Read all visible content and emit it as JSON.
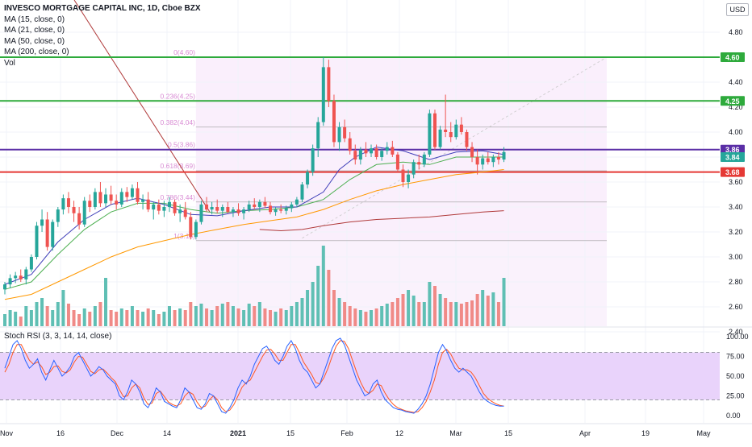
{
  "header": {
    "title": "INVESCO MORTGAGE CAPITAL INC, 1D, Cboe BZX",
    "currency": "USD",
    "indicators": [
      "MA (15, close, 0)",
      "MA (21, close, 0)",
      "MA (50, close, 0)",
      "MA (200, close, 0)",
      "Vol"
    ]
  },
  "colors": {
    "up": "#26a69a",
    "down": "#ef5350",
    "ma15": "#3f3fb8",
    "ma21": "#4caf50",
    "ma50": "#ff9800",
    "ma200": "#b03a3a",
    "purple_line": "#5a2ea6",
    "green_line": "#2eaa3c",
    "red_line": "#e53935",
    "fib": "#d98cd4",
    "stoch_k": "#2962ff",
    "stoch_d": "#ff5722",
    "stoch_band": "#e9d3fb"
  },
  "price_axis": {
    "ticks": [
      "4.80",
      "4.60",
      "4.40",
      "4.20",
      "4.00",
      "3.80",
      "3.60",
      "3.40",
      "3.20",
      "3.00",
      "2.80",
      "2.60",
      "2.40"
    ]
  },
  "price_tags": [
    {
      "label": "4.60",
      "color": "#2eaa3c"
    },
    {
      "label": "4.25",
      "color": "#2eaa3c"
    },
    {
      "label": "3.86",
      "color": "#5a2ea6"
    },
    {
      "label": "3.84",
      "color": "#26a69a"
    },
    {
      "label": "3.68",
      "color": "#e53935"
    }
  ],
  "fib_labels": [
    "0(4.60)",
    "0.236(4.25)",
    "0.382(4.04)",
    "0.5(3.86)",
    "0.618(3.69)",
    "0.786(3.44)",
    "1(3.13)"
  ],
  "stoch": {
    "label": "Stoch RSI (3, 3, 14, 14, close)",
    "ticks": [
      "100.00",
      "75.00",
      "50.00",
      "25.00",
      "0.00"
    ],
    "k": [
      60,
      75,
      90,
      95,
      85,
      70,
      60,
      65,
      72,
      55,
      45,
      58,
      70,
      60,
      50,
      55,
      62,
      75,
      80,
      70,
      60,
      50,
      55,
      62,
      58,
      50,
      45,
      40,
      25,
      20,
      30,
      45,
      40,
      30,
      15,
      10,
      20,
      35,
      30,
      18,
      15,
      12,
      10,
      20,
      35,
      30,
      20,
      10,
      8,
      15,
      28,
      25,
      15,
      5,
      3,
      10,
      20,
      35,
      45,
      40,
      50,
      65,
      75,
      85,
      88,
      80,
      70,
      65,
      75,
      88,
      95,
      85,
      70,
      60,
      55,
      45,
      35,
      40,
      55,
      70,
      85,
      95,
      98,
      90,
      75,
      60,
      45,
      35,
      25,
      28,
      40,
      45,
      30,
      20,
      15,
      10,
      8,
      7,
      5,
      4,
      3,
      8,
      15,
      25,
      40,
      60,
      80,
      90,
      82,
      70,
      60,
      55,
      60,
      55,
      50,
      40,
      30,
      22,
      18,
      15,
      13,
      12,
      12
    ],
    "d": [
      55,
      65,
      80,
      90,
      90,
      80,
      70,
      65,
      68,
      62,
      52,
      55,
      62,
      63,
      56,
      54,
      58,
      68,
      75,
      74,
      65,
      56,
      53,
      58,
      59,
      54,
      48,
      43,
      33,
      24,
      25,
      35,
      40,
      35,
      22,
      14,
      16,
      28,
      31,
      24,
      17,
      14,
      12,
      15,
      25,
      30,
      27,
      17,
      10,
      12,
      20,
      25,
      20,
      10,
      5,
      7,
      14,
      25,
      36,
      42,
      45,
      55,
      65,
      75,
      83,
      84,
      78,
      70,
      70,
      80,
      90,
      90,
      80,
      68,
      60,
      52,
      42,
      40,
      48,
      60,
      75,
      88,
      95,
      94,
      85,
      70,
      55,
      42,
      32,
      28,
      32,
      40,
      38,
      28,
      20,
      14,
      10,
      8,
      6,
      5,
      4,
      5,
      10,
      18,
      30,
      45,
      65,
      80,
      84,
      78,
      68,
      60,
      58,
      58,
      55,
      48,
      38,
      28,
      22,
      18,
      15,
      13,
      12
    ]
  },
  "time_axis": {
    "ticks": [
      "Nov",
      "16",
      "Dec",
      "14",
      "2021",
      "15",
      "Feb",
      "12",
      "Mar",
      "15",
      "Apr",
      "19",
      "May"
    ]
  },
  "chart_data": {
    "type": "candlestick",
    "title": "INVESCO MORTGAGE CAPITAL INC, 1D, Cboe BZX",
    "ylabel": "USD",
    "ylim": [
      2.38,
      4.95
    ],
    "date_range": [
      "2020-11-02",
      "2021-03-15"
    ],
    "candles_ohlc": [
      [
        2.74,
        2.8,
        2.7,
        2.78
      ],
      [
        2.78,
        2.86,
        2.75,
        2.83
      ],
      [
        2.83,
        2.88,
        2.79,
        2.85
      ],
      [
        2.85,
        2.9,
        2.8,
        2.82
      ],
      [
        2.82,
        2.92,
        2.78,
        2.9
      ],
      [
        2.9,
        3.02,
        2.88,
        3.0
      ],
      [
        3.0,
        3.28,
        2.98,
        3.25
      ],
      [
        3.25,
        3.38,
        3.2,
        3.3
      ],
      [
        3.3,
        3.36,
        3.05,
        3.08
      ],
      [
        3.08,
        3.3,
        3.05,
        3.28
      ],
      [
        3.28,
        3.4,
        3.24,
        3.38
      ],
      [
        3.38,
        3.5,
        3.34,
        3.47
      ],
      [
        3.47,
        3.52,
        3.35,
        3.4
      ],
      [
        3.4,
        3.45,
        3.28,
        3.35
      ],
      [
        3.35,
        3.4,
        3.22,
        3.26
      ],
      [
        3.26,
        3.48,
        3.24,
        3.45
      ],
      [
        3.45,
        3.5,
        3.36,
        3.4
      ],
      [
        3.4,
        3.55,
        3.38,
        3.52
      ],
      [
        3.52,
        3.6,
        3.4,
        3.43
      ],
      [
        3.43,
        3.55,
        3.4,
        3.5
      ],
      [
        3.5,
        3.57,
        3.42,
        3.45
      ],
      [
        3.45,
        3.5,
        3.38,
        3.42
      ],
      [
        3.42,
        3.55,
        3.4,
        3.52
      ],
      [
        3.52,
        3.56,
        3.44,
        3.48
      ],
      [
        3.48,
        3.58,
        3.46,
        3.55
      ],
      [
        3.55,
        3.6,
        3.42,
        3.44
      ],
      [
        3.44,
        3.5,
        3.38,
        3.46
      ],
      [
        3.46,
        3.52,
        3.36,
        3.38
      ],
      [
        3.38,
        3.44,
        3.3,
        3.42
      ],
      [
        3.42,
        3.46,
        3.34,
        3.37
      ],
      [
        3.37,
        3.45,
        3.32,
        3.4
      ],
      [
        3.4,
        3.48,
        3.36,
        3.44
      ],
      [
        3.44,
        3.46,
        3.33,
        3.35
      ],
      [
        3.35,
        3.42,
        3.28,
        3.38
      ],
      [
        3.38,
        3.44,
        3.3,
        3.32
      ],
      [
        3.32,
        3.36,
        3.14,
        3.16
      ],
      [
        3.16,
        3.3,
        3.14,
        3.28
      ],
      [
        3.28,
        3.45,
        3.26,
        3.42
      ],
      [
        3.42,
        3.48,
        3.36,
        3.38
      ],
      [
        3.38,
        3.44,
        3.34,
        3.4
      ],
      [
        3.4,
        3.46,
        3.35,
        3.37
      ],
      [
        3.37,
        3.42,
        3.32,
        3.4
      ],
      [
        3.4,
        3.44,
        3.35,
        3.36
      ],
      [
        3.36,
        3.4,
        3.32,
        3.38
      ],
      [
        3.38,
        3.43,
        3.33,
        3.35
      ],
      [
        3.35,
        3.4,
        3.3,
        3.38
      ],
      [
        3.38,
        3.45,
        3.36,
        3.42
      ],
      [
        3.42,
        3.47,
        3.38,
        3.4
      ],
      [
        3.4,
        3.46,
        3.36,
        3.44
      ],
      [
        3.44,
        3.48,
        3.39,
        3.41
      ],
      [
        3.41,
        3.44,
        3.34,
        3.36
      ],
      [
        3.36,
        3.4,
        3.33,
        3.38
      ],
      [
        3.38,
        3.42,
        3.35,
        3.37
      ],
      [
        3.37,
        3.41,
        3.34,
        3.39
      ],
      [
        3.39,
        3.44,
        3.36,
        3.42
      ],
      [
        3.42,
        3.48,
        3.4,
        3.46
      ],
      [
        3.46,
        3.6,
        3.44,
        3.58
      ],
      [
        3.58,
        3.7,
        3.55,
        3.68
      ],
      [
        3.68,
        3.9,
        3.65,
        3.87
      ],
      [
        3.87,
        4.12,
        3.8,
        4.08
      ],
      [
        4.08,
        4.6,
        4.05,
        4.52
      ],
      [
        4.52,
        4.58,
        4.2,
        4.25
      ],
      [
        4.25,
        4.3,
        3.88,
        3.92
      ],
      [
        3.92,
        4.08,
        3.85,
        4.04
      ],
      [
        4.04,
        4.1,
        3.92,
        3.95
      ],
      [
        3.95,
        4.0,
        3.82,
        3.85
      ],
      [
        3.85,
        3.9,
        3.74,
        3.78
      ],
      [
        3.78,
        3.88,
        3.74,
        3.86
      ],
      [
        3.86,
        3.92,
        3.8,
        3.83
      ],
      [
        3.83,
        3.9,
        3.8,
        3.87
      ],
      [
        3.87,
        3.9,
        3.78,
        3.8
      ],
      [
        3.8,
        3.87,
        3.77,
        3.85
      ],
      [
        3.85,
        3.92,
        3.82,
        3.88
      ],
      [
        3.88,
        3.93,
        3.8,
        3.82
      ],
      [
        3.82,
        3.84,
        3.68,
        3.7
      ],
      [
        3.7,
        3.74,
        3.56,
        3.6
      ],
      [
        3.6,
        3.7,
        3.55,
        3.66
      ],
      [
        3.66,
        3.78,
        3.63,
        3.76
      ],
      [
        3.76,
        3.82,
        3.7,
        3.74
      ],
      [
        3.74,
        3.84,
        3.72,
        3.82
      ],
      [
        3.82,
        4.18,
        3.8,
        4.15
      ],
      [
        4.15,
        4.18,
        3.86,
        3.88
      ],
      [
        3.88,
        4.05,
        3.86,
        4.02
      ],
      [
        4.02,
        4.3,
        3.96,
        4.0
      ],
      [
        4.0,
        4.08,
        3.92,
        3.96
      ],
      [
        3.96,
        4.1,
        3.94,
        4.06
      ],
      [
        4.06,
        4.12,
        3.98,
        4.0
      ],
      [
        4.0,
        4.02,
        3.85,
        3.88
      ],
      [
        3.88,
        3.92,
        3.76,
        3.8
      ],
      [
        3.8,
        3.86,
        3.66,
        3.74
      ],
      [
        3.74,
        3.82,
        3.7,
        3.79
      ],
      [
        3.79,
        3.84,
        3.74,
        3.76
      ],
      [
        3.76,
        3.82,
        3.72,
        3.8
      ],
      [
        3.8,
        3.84,
        3.74,
        3.78
      ],
      [
        3.78,
        3.88,
        3.76,
        3.84
      ]
    ],
    "volume_up": [
      true,
      true,
      true,
      false,
      true,
      true,
      true,
      true,
      false,
      true,
      true,
      true,
      false,
      false,
      false,
      true,
      false,
      true,
      false,
      true,
      false,
      false,
      true,
      false,
      true,
      false,
      true,
      false,
      true,
      false,
      true,
      true,
      false,
      true,
      false,
      false,
      true,
      true,
      false,
      true,
      false,
      true,
      false,
      true,
      false,
      true,
      true,
      false,
      true,
      false,
      false,
      true,
      false,
      true,
      true,
      true,
      true,
      true,
      true,
      true,
      true,
      false,
      false,
      true,
      false,
      false,
      false,
      true,
      false,
      true,
      false,
      true,
      true,
      false,
      false,
      false,
      true,
      true,
      false,
      true,
      true,
      false,
      true,
      false,
      false,
      true,
      false,
      false,
      false,
      false,
      true,
      false,
      true,
      false,
      true
    ],
    "volume_relative": [
      0.15,
      0.2,
      0.18,
      0.12,
      0.25,
      0.2,
      0.3,
      0.35,
      0.25,
      0.2,
      0.3,
      0.45,
      0.28,
      0.2,
      0.15,
      0.22,
      0.18,
      0.25,
      0.3,
      0.6,
      0.2,
      0.18,
      0.22,
      0.2,
      0.25,
      0.2,
      0.18,
      0.22,
      0.2,
      0.15,
      0.18,
      0.25,
      0.2,
      0.22,
      0.2,
      0.3,
      0.25,
      0.28,
      0.22,
      0.2,
      0.25,
      0.28,
      0.3,
      0.25,
      0.22,
      0.2,
      0.28,
      0.25,
      0.3,
      0.22,
      0.2,
      0.18,
      0.22,
      0.2,
      0.25,
      0.3,
      0.35,
      0.45,
      0.55,
      0.75,
      1.0,
      0.7,
      0.45,
      0.35,
      0.3,
      0.25,
      0.22,
      0.2,
      0.18,
      0.2,
      0.22,
      0.25,
      0.28,
      0.3,
      0.35,
      0.4,
      0.45,
      0.38,
      0.3,
      0.3,
      0.55,
      0.5,
      0.4,
      0.35,
      0.3,
      0.3,
      0.28,
      0.3,
      0.32,
      0.4,
      0.45,
      0.38,
      0.42,
      0.3,
      0.6
    ],
    "ma15": [
      [
        0,
        2.78
      ],
      [
        5,
        2.86
      ],
      [
        10,
        3.12
      ],
      [
        15,
        3.3
      ],
      [
        20,
        3.42
      ],
      [
        25,
        3.47
      ],
      [
        30,
        3.42
      ],
      [
        35,
        3.34
      ],
      [
        40,
        3.33
      ],
      [
        45,
        3.37
      ],
      [
        50,
        3.4
      ],
      [
        55,
        3.4
      ],
      [
        60,
        3.52
      ],
      [
        63,
        3.7
      ],
      [
        66,
        3.8
      ],
      [
        70,
        3.88
      ],
      [
        75,
        3.85
      ],
      [
        80,
        3.78
      ],
      [
        85,
        3.84
      ],
      [
        90,
        3.85
      ],
      [
        94,
        3.82
      ]
    ],
    "ma21": [
      [
        0,
        2.74
      ],
      [
        5,
        2.8
      ],
      [
        10,
        3.02
      ],
      [
        15,
        3.22
      ],
      [
        20,
        3.36
      ],
      [
        25,
        3.43
      ],
      [
        30,
        3.43
      ],
      [
        35,
        3.38
      ],
      [
        40,
        3.35
      ],
      [
        45,
        3.37
      ],
      [
        50,
        3.38
      ],
      [
        55,
        3.4
      ],
      [
        60,
        3.46
      ],
      [
        65,
        3.62
      ],
      [
        70,
        3.74
      ],
      [
        75,
        3.76
      ],
      [
        80,
        3.74
      ],
      [
        85,
        3.8
      ],
      [
        90,
        3.8
      ],
      [
        94,
        3.8
      ]
    ],
    "ma50": [
      [
        0,
        2.66
      ],
      [
        5,
        2.7
      ],
      [
        10,
        2.8
      ],
      [
        15,
        2.9
      ],
      [
        20,
        3.0
      ],
      [
        25,
        3.08
      ],
      [
        30,
        3.13
      ],
      [
        35,
        3.18
      ],
      [
        40,
        3.22
      ],
      [
        45,
        3.26
      ],
      [
        50,
        3.29
      ],
      [
        55,
        3.32
      ],
      [
        60,
        3.38
      ],
      [
        65,
        3.46
      ],
      [
        70,
        3.53
      ],
      [
        75,
        3.58
      ],
      [
        80,
        3.62
      ],
      [
        85,
        3.66
      ],
      [
        90,
        3.68
      ],
      [
        94,
        3.7
      ]
    ],
    "ma200": [
      [
        48,
        3.22
      ],
      [
        52,
        3.21
      ],
      [
        56,
        3.22
      ],
      [
        60,
        3.25
      ],
      [
        65,
        3.28
      ],
      [
        70,
        3.3
      ],
      [
        75,
        3.31
      ],
      [
        80,
        3.32
      ],
      [
        85,
        3.34
      ],
      [
        90,
        3.36
      ],
      [
        94,
        3.37
      ]
    ],
    "horizontal_levels": [
      4.6,
      4.25,
      3.86,
      3.68
    ],
    "fib_levels": [
      4.6,
      4.25,
      4.04,
      3.86,
      3.69,
      3.44,
      3.13
    ]
  }
}
